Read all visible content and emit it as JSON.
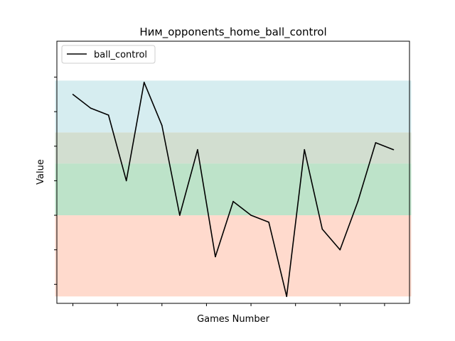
{
  "chart_data": {
    "type": "line",
    "title": "Ним_opponents_home_ball_control",
    "xlabel": "Games Number",
    "ylabel": "Value",
    "legend_placement": "top-left",
    "grid": false,
    "xlim": [
      -0.9,
      18.9
    ],
    "ylim": [
      -0.55,
      7.04
    ],
    "x_ticks": [
      0,
      2.5,
      5,
      7.5,
      10,
      12.5,
      15,
      17.5
    ],
    "y_ticks": [
      0,
      1,
      2,
      3,
      4,
      5,
      6
    ],
    "bands": [
      {
        "from": -0.35,
        "to": 2,
        "color": "#ffdacd"
      },
      {
        "from": 2,
        "to": 3.5,
        "color": "#bde3c9"
      },
      {
        "from": 3.5,
        "to": 4.4,
        "color": "#d2ded0"
      },
      {
        "from": 4.4,
        "to": 5.9,
        "color": "#d6edf0"
      }
    ],
    "series": [
      {
        "name": "ball_control",
        "color": "#000000",
        "x": [
          0,
          1,
          2,
          3,
          4,
          5,
          6,
          7,
          8,
          9,
          10,
          11,
          12,
          13,
          14,
          15,
          16,
          17,
          18
        ],
        "y": [
          5.5,
          5.1,
          4.9,
          3.0,
          5.85,
          4.6,
          2.0,
          3.9,
          0.8,
          2.4,
          2.0,
          1.8,
          -0.35,
          3.9,
          1.6,
          1.0,
          2.4,
          4.1,
          3.9
        ]
      }
    ]
  }
}
